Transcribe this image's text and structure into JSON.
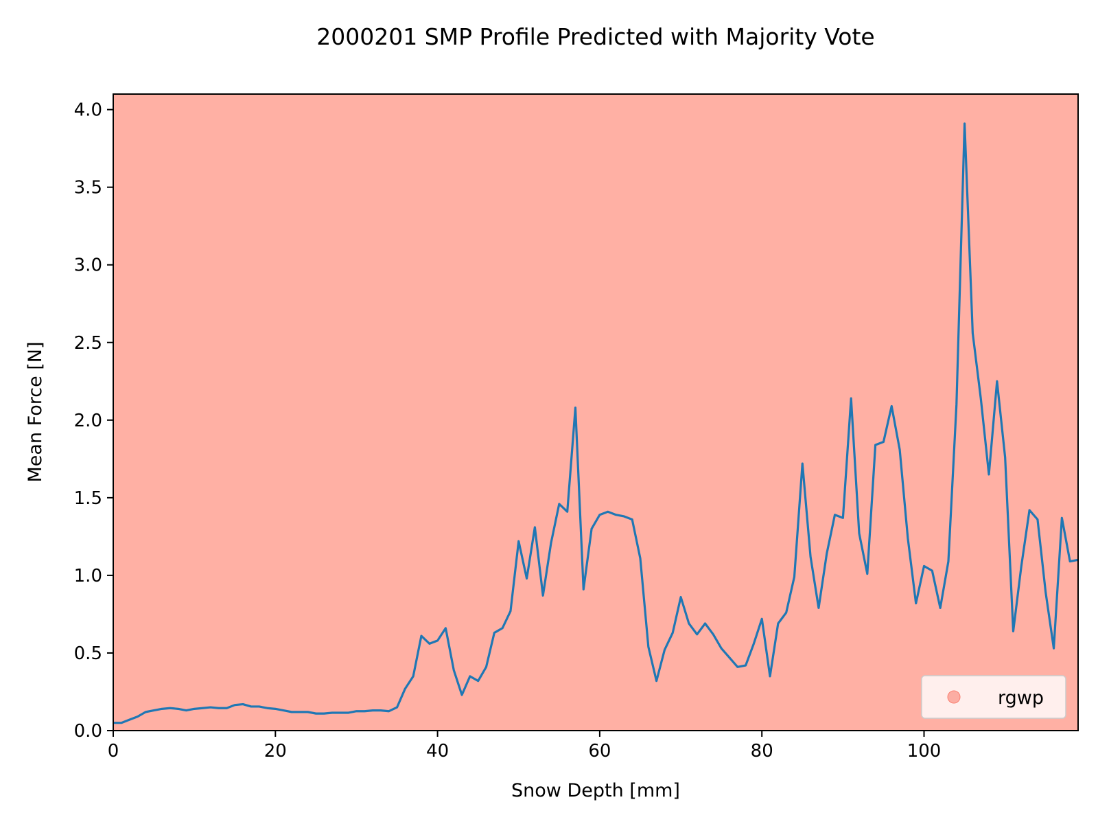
{
  "chart_data": {
    "type": "line",
    "title": "2000201 SMP Profile Predicted with Majority Vote",
    "xlabel": "Snow Depth [mm]",
    "ylabel": "Mean Force [N]",
    "xlim": [
      0,
      119
    ],
    "ylim": [
      0,
      4.1
    ],
    "xticks": [
      0,
      20,
      40,
      60,
      80,
      100
    ],
    "xtick_labels": [
      "0",
      "20",
      "40",
      "60",
      "80",
      "100"
    ],
    "yticks": [
      0,
      0.5,
      1,
      1.5,
      2,
      2.5,
      3,
      3.5,
      4
    ],
    "ytick_labels": [
      "0.0",
      "0.5",
      "1.0",
      "1.5",
      "2.0",
      "2.5",
      "3.0",
      "3.5",
      "4.0"
    ],
    "grid": false,
    "background_color": "#ffb0a4",
    "line_color": "#1f77b4",
    "legend": {
      "position": "lower-right",
      "entries": [
        {
          "label": "rgwp",
          "marker": "circle",
          "color": "#fa8072"
        }
      ]
    },
    "series": [
      {
        "x": [
          0,
          1,
          2,
          3,
          4,
          5,
          6,
          7,
          8,
          9,
          10,
          11,
          12,
          13,
          14,
          15,
          16,
          17,
          18,
          19,
          20,
          21,
          22,
          23,
          24,
          25,
          26,
          27,
          28,
          29,
          30,
          31,
          32,
          33,
          34,
          35,
          36,
          37,
          38,
          39,
          40,
          41,
          42,
          43,
          44,
          45,
          46,
          47,
          48,
          49,
          50,
          51,
          52,
          53,
          54,
          55,
          56,
          57,
          58,
          59,
          60,
          61,
          62,
          63,
          64,
          65,
          66,
          67,
          68,
          69,
          70,
          71,
          72,
          73,
          74,
          75,
          76,
          77,
          78,
          79,
          80,
          81,
          82,
          83,
          84,
          85,
          86,
          87,
          88,
          89,
          90,
          91,
          92,
          93,
          94,
          95,
          96,
          97,
          98,
          99,
          100,
          101,
          102,
          103,
          104,
          105,
          106,
          107,
          108,
          109,
          110,
          111,
          112,
          113,
          114,
          115,
          116,
          117,
          118,
          119
        ],
        "y": [
          0.05,
          0.05,
          0.07,
          0.09,
          0.12,
          0.13,
          0.14,
          0.145,
          0.14,
          0.13,
          0.14,
          0.145,
          0.15,
          0.145,
          0.145,
          0.165,
          0.17,
          0.155,
          0.155,
          0.145,
          0.14,
          0.13,
          0.12,
          0.12,
          0.12,
          0.11,
          0.11,
          0.115,
          0.115,
          0.115,
          0.125,
          0.125,
          0.13,
          0.13,
          0.125,
          0.15,
          0.27,
          0.35,
          0.61,
          0.56,
          0.58,
          0.66,
          0.39,
          0.23,
          0.35,
          0.32,
          0.41,
          0.63,
          0.66,
          0.77,
          1.22,
          0.98,
          1.31,
          0.87,
          1.21,
          1.46,
          1.41,
          2.08,
          0.91,
          1.3,
          1.39,
          1.41,
          1.39,
          1.38,
          1.36,
          1.11,
          0.54,
          0.32,
          0.52,
          0.63,
          0.86,
          0.69,
          0.62,
          0.69,
          0.62,
          0.53,
          0.47,
          0.41,
          0.42,
          0.56,
          0.72,
          0.35,
          0.69,
          0.76,
          0.99,
          1.72,
          1.12,
          0.79,
          1.14,
          1.39,
          1.37,
          2.14,
          1.27,
          1.01,
          1.84,
          1.86,
          2.09,
          1.81,
          1.24,
          0.82,
          1.06,
          1.03,
          0.79,
          1.09,
          2.1,
          3.91,
          2.56,
          2.14,
          1.65,
          2.25,
          1.76,
          0.64,
          1.06,
          1.42,
          1.36,
          0.89,
          0.53,
          1.37,
          1.09,
          1.1
        ]
      }
    ]
  }
}
